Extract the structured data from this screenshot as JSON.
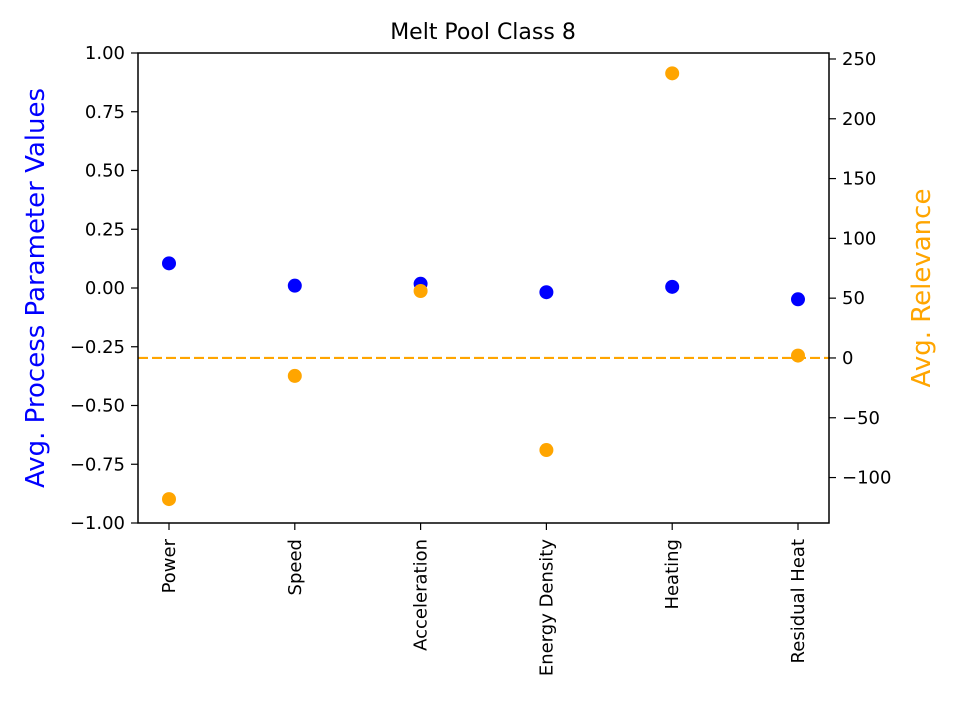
{
  "chart_data": {
    "type": "scatter",
    "title": "Melt Pool Class 8",
    "categories": [
      "Power",
      "Speed",
      "Acceleration",
      "Energy Density",
      "Heating",
      "Residual Heat"
    ],
    "ylabel_left": "Avg. Process Parameter Values",
    "ylabel_right": "Avg. Relevance",
    "ylim_left": [
      -1.0,
      1.0
    ],
    "ylim_right": [
      -138,
      255
    ],
    "yticks_left": [
      "1.00",
      "0.75",
      "0.50",
      "0.25",
      "0.00",
      "−0.25",
      "−0.50",
      "−0.75",
      "−1.00"
    ],
    "yticks_left_values": [
      1.0,
      0.75,
      0.5,
      0.25,
      0.0,
      -0.25,
      -0.5,
      -0.75,
      -1.0
    ],
    "yticks_right": [
      "250",
      "200",
      "150",
      "100",
      "50",
      "0",
      "−50",
      "−100"
    ],
    "yticks_right_values": [
      250,
      200,
      150,
      100,
      50,
      0,
      -50,
      -100
    ],
    "reference_line_right": 0,
    "grid": false,
    "series": [
      {
        "axis": "left",
        "color": "#0000ff",
        "values": [
          0.105,
          0.01,
          0.018,
          -0.018,
          0.005,
          -0.048
        ]
      },
      {
        "axis": "right",
        "color": "#ffa500",
        "values": [
          -118,
          -15,
          56,
          -77,
          238,
          2
        ]
      }
    ],
    "colors": {
      "left_label": "#0000ff",
      "right_label": "#ffa500",
      "reference_line": "#ffa500"
    }
  }
}
